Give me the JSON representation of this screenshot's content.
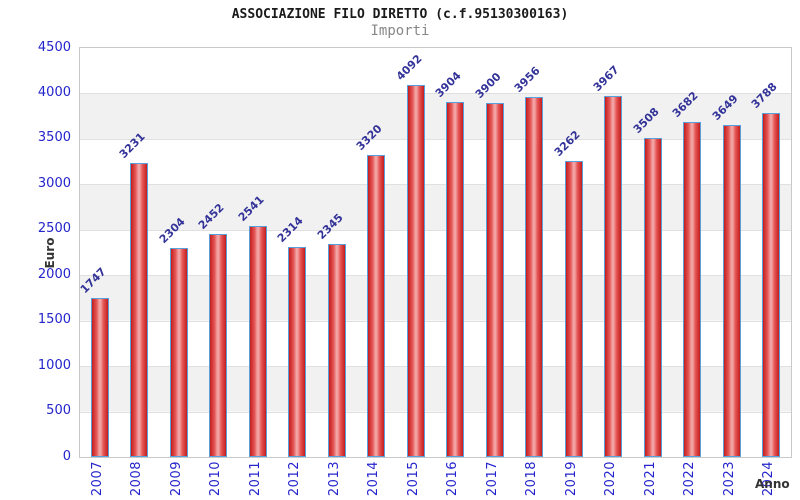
{
  "chart_data": {
    "type": "bar",
    "title": "ASSOCIAZIONE FILO DIRETTO (c.f.95130300163)",
    "subtitle": "Importi",
    "ylabel": "Euro",
    "xlabel": "Anno",
    "categories": [
      "2007",
      "2008",
      "2009",
      "2010",
      "2011",
      "2012",
      "2013",
      "2014",
      "2015",
      "2016",
      "2017",
      "2018",
      "2019",
      "2020",
      "2021",
      "2022",
      "2023",
      "2024"
    ],
    "values": [
      1747,
      3231,
      2304,
      2452,
      2541,
      2314,
      2345,
      3320,
      4092,
      3904,
      3900,
      3956,
      3262,
      3967,
      3508,
      3682,
      3649,
      3788
    ],
    "ylim": [
      0,
      4500
    ],
    "yticks": [
      0,
      500,
      1000,
      1500,
      2000,
      2500,
      3000,
      3500,
      4000,
      4500
    ],
    "legend": null,
    "layout": {
      "grid": "horizontal alternating bands",
      "value_labels_rotation": -45,
      "x_labels_rotation": -90
    },
    "colors": {
      "bar_edge": "#c51d1d",
      "bar_mid": "#f2a6a6",
      "bar_border": "#58a0dc",
      "tick_label": "#2424cc",
      "value_label": "#333399",
      "axis_title": "#333333",
      "title": "#1a1a1a",
      "subtitle": "#888888",
      "band_gray": "#f1f1f1",
      "gridline": "#e0e0e0",
      "plot_border": "#c9c9c9"
    }
  }
}
